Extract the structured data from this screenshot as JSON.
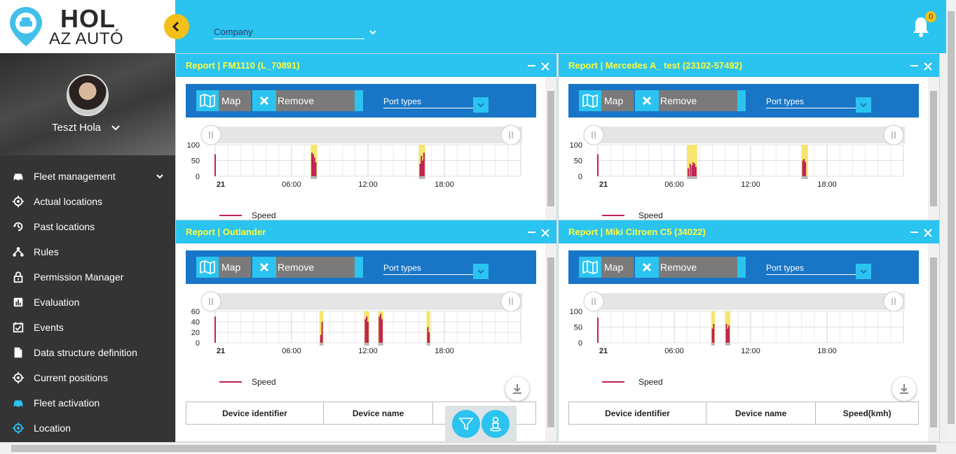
{
  "brand": {
    "line1": "HOL",
    "line2": "AZ AUTÓ"
  },
  "colors": {
    "accent": "#2bc3ef",
    "toolbar": "#1976c6",
    "speed": "#c0215a",
    "highlight": "#f4e04a",
    "title": "#fffb3a"
  },
  "user": {
    "name": "Teszt Hola"
  },
  "nav": [
    {
      "label": "Fleet management",
      "icon": "car-icon",
      "has_submenu": true
    },
    {
      "label": "Actual locations",
      "icon": "crosshair-icon"
    },
    {
      "label": "Past locations",
      "icon": "history-icon"
    },
    {
      "label": "Rules",
      "icon": "hierarchy-icon"
    },
    {
      "label": "Permission Manager",
      "icon": "lock-icon"
    },
    {
      "label": "Evaluation",
      "icon": "bar-chart-icon"
    },
    {
      "label": "Events",
      "icon": "calendar-check-icon"
    },
    {
      "label": "Data structure definition",
      "icon": "document-icon"
    },
    {
      "label": "Current positions",
      "icon": "crosshair-icon"
    },
    {
      "label": "Fleet activation",
      "icon": "car-icon",
      "active_color": "#2bc3ef"
    },
    {
      "label": "Location",
      "icon": "crosshair-icon",
      "active_color": "#2bc3ef"
    }
  ],
  "header": {
    "company_label": "Company",
    "notifications_count": "0"
  },
  "common": {
    "map_label": "Map",
    "remove_label": "Remove selection",
    "port_types_label": "Port types",
    "legend_speed": "Speed",
    "table_headers": [
      "Device identifier",
      "Device name",
      "Speed(kmh)"
    ]
  },
  "panels": [
    {
      "title": "Report | FM1110 (L_70891)"
    },
    {
      "title": "Report | Mercedes A_ test (23102-57492)"
    },
    {
      "title": "Report | Outlander"
    },
    {
      "title": "Report | Miki Citroen C5 (34022)"
    }
  ],
  "chart_data": [
    {
      "type": "bar",
      "title": "Report | FM1110 (L_70891)",
      "x_ticks": [
        "21",
        "06:00",
        "12:00",
        "18:00"
      ],
      "y_ticks": [
        0,
        50,
        100
      ],
      "ylim": [
        0,
        100
      ],
      "series": [
        {
          "name": "Speed",
          "x_hours": [
            0.0,
            7.6,
            7.7,
            7.8,
            7.9,
            16.1,
            16.2,
            16.3,
            16.4
          ],
          "values": [
            70,
            75,
            70,
            60,
            45,
            40,
            65,
            50,
            75
          ]
        }
      ],
      "highlight_hours": [
        [
          7.5,
          8.0
        ],
        [
          16.0,
          16.5
        ]
      ]
    },
    {
      "type": "bar",
      "title": "Report | Mercedes A_ test (23102-57492)",
      "x_ticks": [
        "21",
        "06:00",
        "12:00",
        "18:00"
      ],
      "y_ticks": [
        0,
        50,
        100
      ],
      "ylim": [
        0,
        100
      ],
      "series": [
        {
          "name": "Speed",
          "x_hours": [
            0.0,
            7.1,
            7.25,
            7.4,
            7.5,
            7.6,
            7.7,
            16.1,
            16.2,
            16.3
          ],
          "values": [
            70,
            25,
            40,
            35,
            45,
            40,
            30,
            50,
            55,
            45
          ]
        }
      ],
      "highlight_hours": [
        [
          7.0,
          7.8
        ],
        [
          16.0,
          16.5
        ]
      ]
    },
    {
      "type": "bar",
      "title": "Report | Outlander",
      "x_ticks": [
        "21",
        "06:00",
        "12:00",
        "18:00"
      ],
      "y_ticks": [
        0,
        20,
        40,
        60
      ],
      "ylim": [
        0,
        60
      ],
      "series": [
        {
          "name": "Speed",
          "x_hours": [
            0.0,
            8.3,
            8.4,
            11.8,
            11.9,
            12.0,
            12.9,
            13.0,
            13.1,
            16.7,
            16.8
          ],
          "values": [
            50,
            15,
            40,
            45,
            50,
            40,
            50,
            55,
            45,
            30,
            20
          ]
        }
      ],
      "highlight_hours": [
        [
          8.2,
          8.5
        ],
        [
          11.7,
          12.1
        ],
        [
          12.8,
          13.2
        ],
        [
          16.6,
          16.9
        ]
      ]
    },
    {
      "type": "bar",
      "title": "Report | Miki Citroen C5 (34022)",
      "x_ticks": [
        "21",
        "06:00",
        "12:00",
        "18:00"
      ],
      "y_ticks": [
        0,
        50,
        100
      ],
      "ylim": [
        0,
        100
      ],
      "series": [
        {
          "name": "Speed",
          "x_hours": [
            0.0,
            9.0,
            9.1,
            10.1,
            10.2,
            10.3
          ],
          "values": [
            80,
            45,
            60,
            60,
            45,
            55
          ]
        }
      ],
      "highlight_hours": [
        [
          8.9,
          9.2
        ],
        [
          10.0,
          10.4
        ]
      ]
    }
  ]
}
